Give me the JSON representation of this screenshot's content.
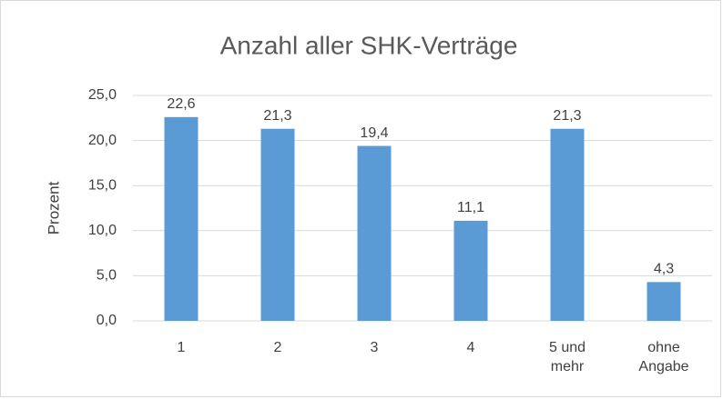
{
  "chart_data": {
    "type": "bar",
    "title": "Anzahl aller SHK-Verträge",
    "y_label": "Prozent",
    "categories": [
      "1",
      "2",
      "3",
      "4",
      "5 und mehr",
      "ohne Angabe"
    ],
    "values": [
      22.6,
      21.3,
      19.4,
      11.1,
      21.3,
      4.3
    ],
    "value_labels": [
      "22,6",
      "21,3",
      "19,4",
      "11,1",
      "21,3",
      "4,3"
    ],
    "color": "#5b9bd5",
    "ylim": [
      0,
      25
    ],
    "yticks": [
      {
        "value": 0,
        "label": "0,0"
      },
      {
        "value": 5,
        "label": "5,0"
      },
      {
        "value": 10,
        "label": "10,0"
      },
      {
        "value": 15,
        "label": "15,0"
      },
      {
        "value": 20,
        "label": "20,0"
      },
      {
        "value": 25,
        "label": "25,0"
      }
    ],
    "grid": true
  }
}
